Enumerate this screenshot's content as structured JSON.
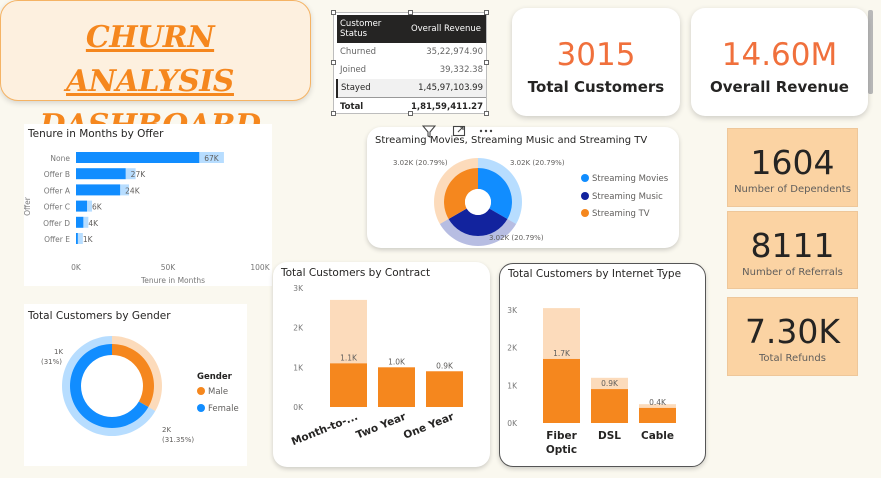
{
  "title": {
    "text": "CHURN ANALYSIS DASHBOARD"
  },
  "table": {
    "headers": [
      "Customer Status",
      "Overall Revenue"
    ],
    "rows": [
      {
        "status": "Churned",
        "revenue": "35,22,974.90"
      },
      {
        "status": "Joined",
        "revenue": "39,332.38"
      },
      {
        "status": "Stayed",
        "revenue": "1,45,97,103.99"
      }
    ],
    "total": {
      "label": "Total",
      "revenue": "1,81,59,411.27"
    }
  },
  "kpis": {
    "total_customers": {
      "value": "3015",
      "label": "Total Customers"
    },
    "overall_revenue": {
      "value": "14.60M",
      "label": "Overall Revenue"
    },
    "dependents": {
      "value": "1604",
      "label": "Number of Dependents"
    },
    "referrals": {
      "value": "8111",
      "label": "Number of Referrals"
    },
    "refunds": {
      "value": "7.30K",
      "label": "Total Refunds"
    }
  },
  "colors": {
    "accent": "#f5871e",
    "blue": "#118dff",
    "navy": "#12239e",
    "kpi_value": "#f0703c",
    "kpi_tile": "#fbd3a3"
  },
  "icons": {
    "filter": "filter-icon",
    "focus": "focus-mode-icon",
    "more": "more-options-icon"
  },
  "chart_data": [
    {
      "id": "tenure",
      "type": "bar",
      "orientation": "horizontal",
      "title": "Tenure in Months by Offer",
      "xlabel": "Tenure in Months",
      "ylabel": "Offer",
      "categories": [
        "None",
        "Offer B",
        "Offer A",
        "Offer C",
        "Offer D",
        "Offer E"
      ],
      "values": [
        67,
        27,
        24,
        6,
        4,
        1
      ],
      "value_labels": [
        "67K",
        "27K",
        "24K",
        "6K",
        "4K",
        "1K"
      ],
      "xticks": [
        "0K",
        "50K",
        "100K"
      ],
      "xlim": [
        0,
        100
      ]
    },
    {
      "id": "streaming",
      "type": "pie",
      "title": "Streaming Movies, Streaming Music and Streaming TV",
      "labels": [
        "Streaming Movies",
        "Streaming Music",
        "Streaming TV"
      ],
      "values": [
        3.02,
        3.02,
        3.02
      ],
      "value_labels": [
        "3.02K (20.79%)",
        "3.02K (20.79%)",
        "3.02K (20.79%)"
      ],
      "colors": [
        "#118dff",
        "#12239e",
        "#f5871e"
      ]
    },
    {
      "id": "gender",
      "type": "pie",
      "title": "Total Customers by Gender",
      "legend_title": "Gender",
      "labels": [
        "Male",
        "Female"
      ],
      "values": [
        1,
        2
      ],
      "value_labels": [
        "1K",
        "(31%)",
        "2K",
        "(31.35%)"
      ],
      "colors": [
        "#f5871e",
        "#118dff"
      ]
    },
    {
      "id": "contract",
      "type": "bar",
      "title": "Total Customers by Contract",
      "categories": [
        "Month-to-...",
        "Two Year",
        "One Year"
      ],
      "totals": [
        2.7,
        1.0,
        0.9
      ],
      "values": [
        1.1,
        1.0,
        0.9
      ],
      "value_labels": [
        "1.1K",
        "1.0K",
        "0.9K"
      ],
      "yticks": [
        "3K",
        "2K",
        "1K",
        "0K"
      ],
      "ylim": [
        0,
        3
      ]
    },
    {
      "id": "internet",
      "type": "bar",
      "title": "Total Customers by Internet Type",
      "categories": [
        "Fiber Optic",
        "DSL",
        "Cable"
      ],
      "totals": [
        3.05,
        1.2,
        0.5
      ],
      "values": [
        1.7,
        0.9,
        0.4
      ],
      "value_labels": [
        "1.7K",
        "0.9K",
        "0.4K"
      ],
      "yticks": [
        "3K",
        "2K",
        "1K",
        "0K"
      ],
      "ylim": [
        0,
        3
      ]
    }
  ]
}
